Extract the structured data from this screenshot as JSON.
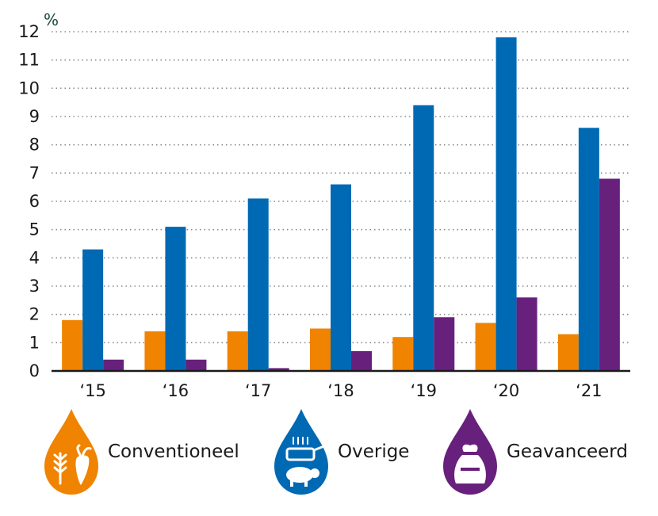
{
  "chart_data": {
    "type": "bar",
    "unit": "%",
    "categories": [
      "‘15",
      "‘16",
      "‘17",
      "‘18",
      "‘19",
      "‘20",
      "‘21"
    ],
    "series": [
      {
        "name": "Conventioneel",
        "color": "#F08300",
        "values": [
          1.8,
          1.4,
          1.4,
          1.5,
          1.2,
          1.7,
          1.3
        ]
      },
      {
        "name": "Overige",
        "color": "#0069B4",
        "values": [
          4.3,
          5.1,
          6.1,
          6.6,
          9.4,
          11.8,
          8.6
        ]
      },
      {
        "name": "Geavanceerd",
        "color": "#68207D",
        "values": [
          0.4,
          0.4,
          0.1,
          0.7,
          1.9,
          2.6,
          6.8
        ]
      }
    ],
    "yticks": [
      0,
      1,
      2,
      3,
      4,
      5,
      6,
      7,
      8,
      9,
      10,
      11,
      12
    ],
    "ylim": [
      0,
      12
    ],
    "grid": "horizontal dotted",
    "legend": "bottom"
  },
  "legend": {
    "items": [
      {
        "label": "Conventioneel",
        "icon": "wheat-beet-icon",
        "color": "#F08300"
      },
      {
        "label": "Overige",
        "icon": "pig-fryer-icon",
        "color": "#0069B4"
      },
      {
        "label": "Geavanceerd",
        "icon": "waste-bag-icon",
        "color": "#68207D"
      }
    ]
  }
}
